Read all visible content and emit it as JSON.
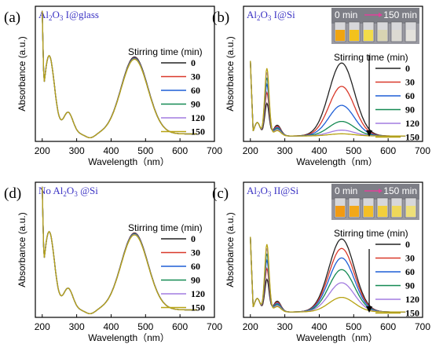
{
  "chart_data": [
    {
      "id": "a",
      "type": "line",
      "panel_letter": "(a)",
      "sample_label": {
        "main": "Al",
        "sub1": "2",
        "mid": "O",
        "sub2": "3",
        "tail": " I@glass"
      },
      "xlabel": "Wavelength（nm）",
      "ylabel": "Absorbance (a.u.)",
      "xlim": [
        180,
        700
      ],
      "xticks": [
        200,
        300,
        400,
        500,
        600,
        700
      ],
      "legend": {
        "title": "Stirring time (min)",
        "placement": "right"
      },
      "legend_entries": [
        "0",
        "30",
        "60",
        "90",
        "120",
        "150"
      ],
      "series": [
        {
          "color": "#222222",
          "shape": "a"
        },
        {
          "color": "#d9392a",
          "shape": "a"
        },
        {
          "color": "#1f5fd6",
          "shape": "a"
        },
        {
          "color": "#158a53",
          "shape": "a"
        },
        {
          "color": "#a27be0",
          "shape": "a"
        },
        {
          "color": "#b7a313",
          "shape": "a"
        }
      ],
      "peak_factors": [
        1.0,
        0.99,
        0.985,
        0.98,
        0.975,
        0.97
      ],
      "inset": null
    },
    {
      "id": "b",
      "type": "line",
      "panel_letter": "(b)",
      "sample_label": {
        "main": "Al",
        "sub1": "2",
        "mid": "O",
        "sub2": "3",
        "tail": " I@Si"
      },
      "xlabel": "Wavelength（nm）",
      "ylabel": "Absorbance (a.u.)",
      "xlim": [
        180,
        700
      ],
      "xticks": [
        200,
        300,
        400,
        500,
        600,
        700
      ],
      "legend": {
        "title": "Stirring time (min)",
        "placement": "right"
      },
      "legend_entries": [
        "0",
        "30",
        "60",
        "90",
        "120",
        "150"
      ],
      "series": [
        {
          "color": "#222222",
          "shape": "b"
        },
        {
          "color": "#d9392a",
          "shape": "b"
        },
        {
          "color": "#1f5fd6",
          "shape": "b"
        },
        {
          "color": "#158a53",
          "shape": "b"
        },
        {
          "color": "#a27be0",
          "shape": "b"
        },
        {
          "color": "#b7a313",
          "shape": "b"
        }
      ],
      "peak_factors": [
        1.0,
        0.68,
        0.42,
        0.2,
        0.08,
        0.03
      ],
      "inset": {
        "left_label": "0 min",
        "right_label": "150 min",
        "vial_colors": [
          "#f0a410",
          "#f3c21c",
          "#f2dc4a",
          "#d8d4b2",
          "#dcdad2",
          "#e4e2dc"
        ]
      }
    },
    {
      "id": "d",
      "type": "line",
      "panel_letter": "(d)",
      "sample_label": {
        "main": "No Al",
        "sub1": "2",
        "mid": "O",
        "sub2": "3",
        "tail": " @Si"
      },
      "xlabel": "Wavelength（nm）",
      "ylabel": "Absorbance (a.u.)",
      "xlim": [
        180,
        700
      ],
      "xticks": [
        200,
        300,
        400,
        500,
        600,
        700
      ],
      "legend": {
        "title": "Stirring time (min)",
        "placement": "right"
      },
      "legend_entries": [
        "0",
        "30",
        "60",
        "90",
        "120",
        "150"
      ],
      "series": [
        {
          "color": "#222222",
          "shape": "a"
        },
        {
          "color": "#d9392a",
          "shape": "a"
        },
        {
          "color": "#1f5fd6",
          "shape": "a"
        },
        {
          "color": "#158a53",
          "shape": "a"
        },
        {
          "color": "#a27be0",
          "shape": "a"
        },
        {
          "color": "#b7a313",
          "shape": "a"
        }
      ],
      "peak_factors": [
        1.0,
        0.995,
        0.99,
        0.985,
        0.98,
        0.975
      ],
      "inset": null
    },
    {
      "id": "c",
      "type": "line",
      "panel_letter": "(c)",
      "sample_label": {
        "main": "Al",
        "sub1": "2",
        "mid": "O",
        "sub2": "3",
        "tail": " II@Si"
      },
      "xlabel": "Wavelength（nm）",
      "ylabel": "Absorbance (a.u.)",
      "xlim": [
        180,
        700
      ],
      "xticks": [
        200,
        300,
        400,
        500,
        600,
        700
      ],
      "legend": {
        "title": "Stirring time (min)",
        "placement": "right"
      },
      "legend_entries": [
        "0",
        "30",
        "60",
        "90",
        "120",
        "150"
      ],
      "series": [
        {
          "color": "#222222",
          "shape": "b"
        },
        {
          "color": "#d9392a",
          "shape": "b"
        },
        {
          "color": "#1f5fd6",
          "shape": "b"
        },
        {
          "color": "#158a53",
          "shape": "b"
        },
        {
          "color": "#a27be0",
          "shape": "b"
        },
        {
          "color": "#b7a313",
          "shape": "b"
        }
      ],
      "peak_factors": [
        1.0,
        0.87,
        0.74,
        0.58,
        0.4,
        0.2
      ],
      "inset": {
        "left_label": "0 min",
        "right_label": "150 min",
        "vial_colors": [
          "#f29a12",
          "#f2a818",
          "#f4bf26",
          "#f2cf3c",
          "#efd85a",
          "#eedf78"
        ]
      }
    }
  ]
}
